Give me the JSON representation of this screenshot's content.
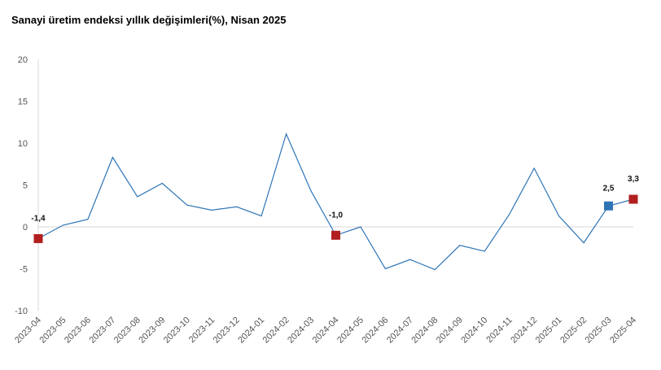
{
  "chart_data": {
    "type": "line",
    "title": "Sanayi üretim endeksi yıllık değişimleri(%), Nisan 2025",
    "xlabel": "",
    "ylabel": "",
    "ylim": [
      -10,
      20
    ],
    "yticks": [
      "-10",
      "-5",
      "0",
      "5",
      "10",
      "15",
      "20"
    ],
    "grid": false,
    "legend": "none",
    "line_color": "#2E75B6",
    "highlight_red": "#B21F1F",
    "highlight_blue": "#2E75B6",
    "categories": [
      "2023-04",
      "2023-05",
      "2023-06",
      "2023-07",
      "2023-08",
      "2023-09",
      "2023-10",
      "2023-11",
      "2023-12",
      "2024-01",
      "2024-02",
      "2024-03",
      "2024-04",
      "2024-05",
      "2024-06",
      "2024-07",
      "2024-08",
      "2024-09",
      "2024-10",
      "2024-11",
      "2024-12",
      "2025-01",
      "2025-02",
      "2025-03",
      "2025-04"
    ],
    "values": [
      -1.4,
      0.2,
      0.9,
      8.3,
      3.6,
      5.2,
      2.6,
      2.0,
      2.4,
      1.3,
      11.1,
      4.3,
      -1.0,
      0.0,
      -5.0,
      -3.9,
      -5.1,
      -2.2,
      -2.9,
      1.5,
      7.0,
      1.3,
      -1.9,
      2.5,
      3.3
    ],
    "markers": [
      {
        "index": 0,
        "label": "-1,4",
        "color": "#B21F1F"
      },
      {
        "index": 12,
        "label": "-1,0",
        "color": "#B21F1F"
      },
      {
        "index": 23,
        "label": "2,5",
        "color": "#2E75B6"
      },
      {
        "index": 24,
        "label": "3,3",
        "color": "#B21F1F"
      }
    ]
  }
}
